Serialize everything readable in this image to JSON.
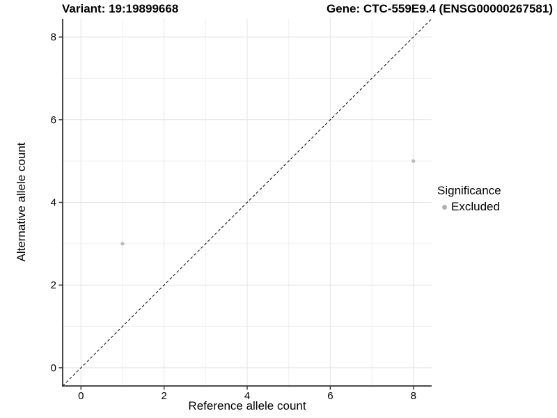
{
  "chart_data": {
    "type": "scatter",
    "title_left": "Variant: 19:19899668",
    "title_right": "Gene: CTC-559E9.4 (ENSG00000267581)",
    "xlabel": "Reference allele count",
    "ylabel": "Alternative allele count",
    "xticks": [
      0,
      2,
      4,
      6,
      8
    ],
    "yticks": [
      0,
      2,
      4,
      6,
      8
    ],
    "minor_xticks": [
      1,
      3,
      5,
      7
    ],
    "minor_yticks": [
      1,
      3,
      5,
      7
    ],
    "xlim": [
      -0.44,
      8.44
    ],
    "ylim": [
      -0.44,
      8.44
    ],
    "grid": "major and minor gridlines on white background",
    "identity_line": {
      "equation": "y = x",
      "style": "dashed",
      "color": "#000000"
    },
    "series": [
      {
        "name": "Excluded",
        "color": "#b8b8b8",
        "points": [
          {
            "x": 1,
            "y": 3
          },
          {
            "x": 8,
            "y": 5
          }
        ]
      }
    ],
    "legend": {
      "title": "Significance",
      "position": "right",
      "items": [
        {
          "label": "Excluded",
          "color": "#b2b2b2"
        }
      ]
    },
    "colors": {
      "axis_line": "#333333",
      "grid_major": "#e3e3e3",
      "grid_minor": "#efefef",
      "text": "#000000",
      "background": "#ffffff"
    }
  }
}
